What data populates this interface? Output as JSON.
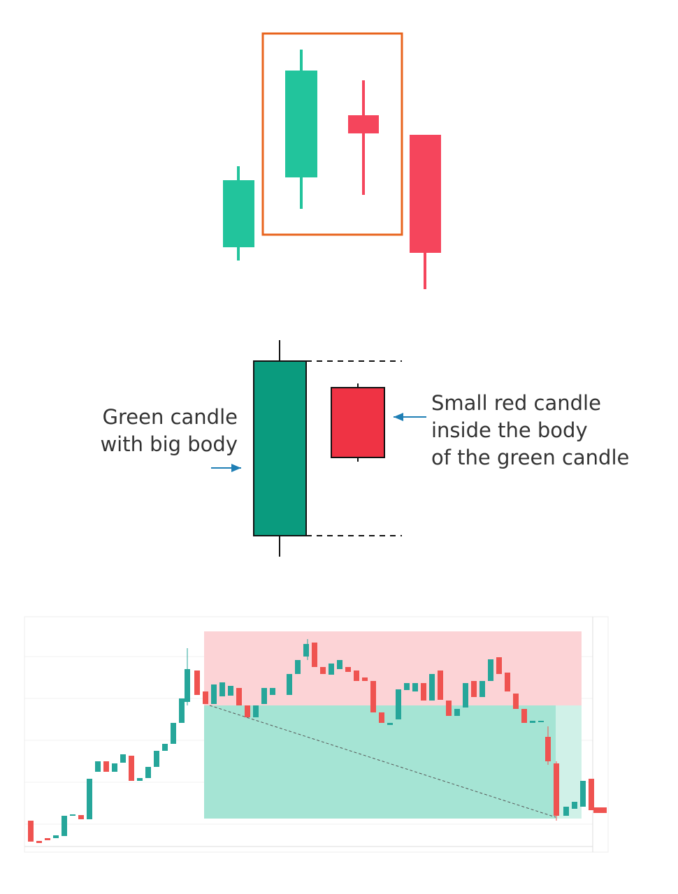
{
  "annotations": {
    "left": [
      "Green candle",
      "with big body"
    ],
    "right": [
      "Small red candle",
      "inside the body",
      "of the green candle"
    ]
  }
}
